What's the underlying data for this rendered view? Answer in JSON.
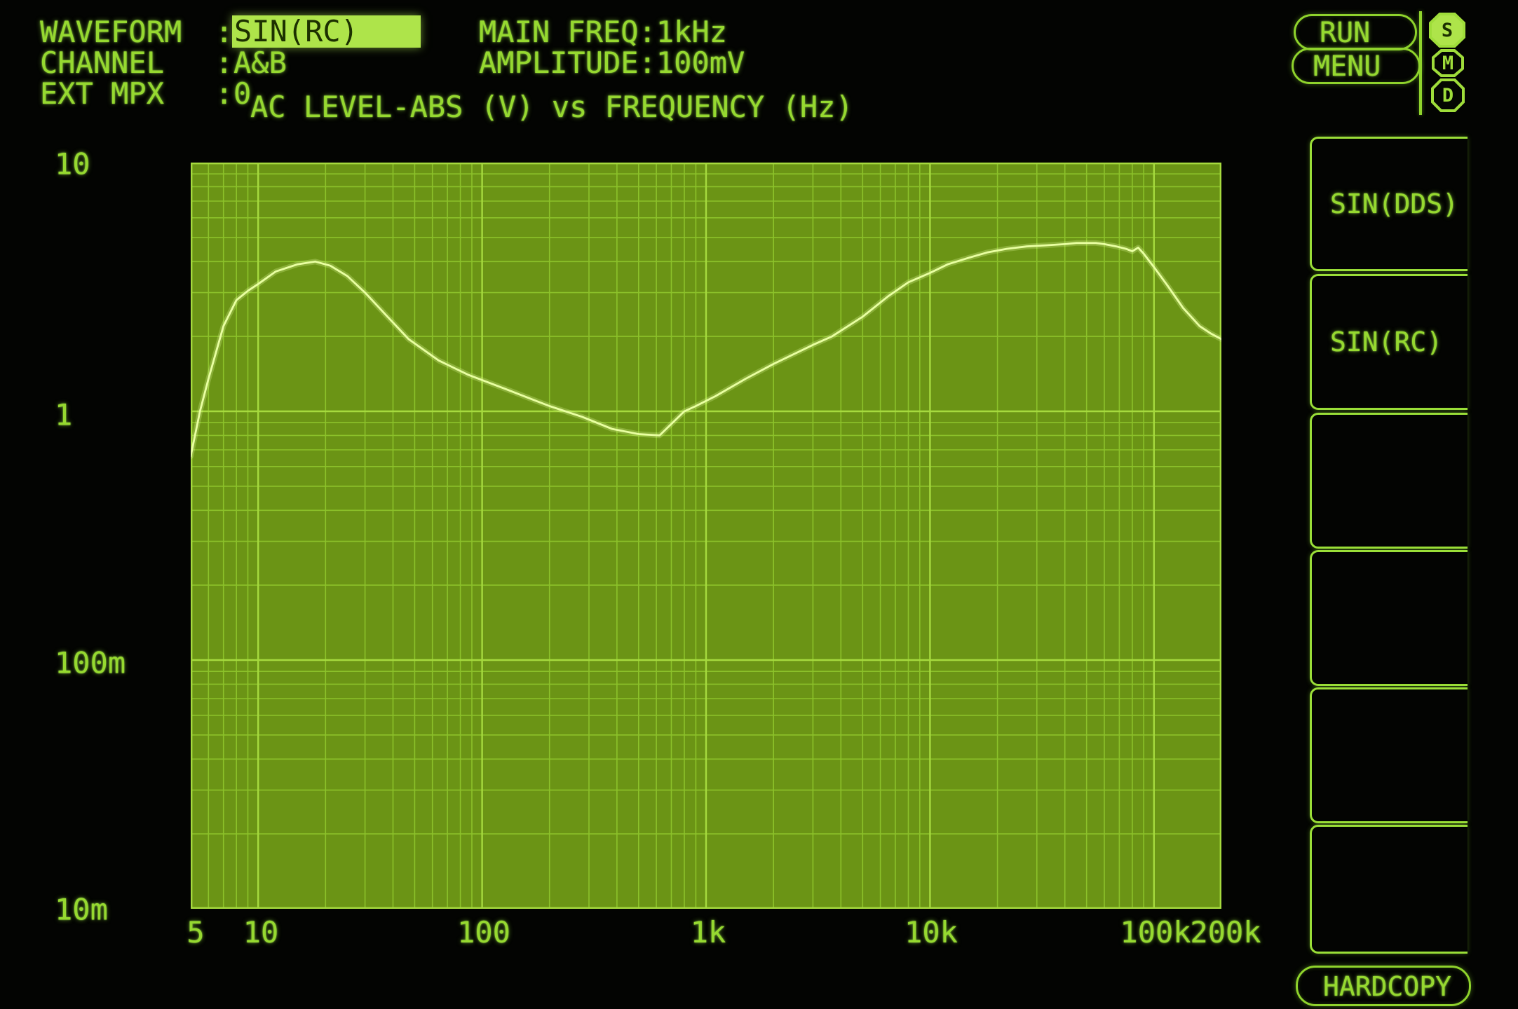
{
  "header": {
    "colon": ":",
    "rows": [
      {
        "label": "WAVEFORM",
        "value": "SIN(RC)",
        "highlighted": true
      },
      {
        "label": "CHANNEL",
        "value": "A&B",
        "highlighted": false
      },
      {
        "label": "EXT MPX",
        "value": "0",
        "highlighted": false
      }
    ],
    "main_freq_label": "MAIN FREQ",
    "main_freq_value": "1kHz",
    "amplitude_label": "AMPLITUDE",
    "amplitude_value": "100mV"
  },
  "chart_data": {
    "type": "line",
    "title": "AC LEVEL-ABS (V) vs FREQUENCY (Hz)",
    "xlabel": "FREQUENCY (Hz)",
    "ylabel": "AC LEVEL-ABS (V)",
    "x_scale": "log",
    "y_scale": "log",
    "x_range_hz": [
      5,
      200000
    ],
    "y_range_v": [
      0.01,
      10
    ],
    "x_tick_labels": [
      "5",
      "10",
      "100",
      "1k",
      "10k",
      "100k",
      "200k"
    ],
    "x_tick_values": [
      5,
      10,
      100,
      1000,
      10000,
      100000,
      200000
    ],
    "y_tick_labels": [
      "10",
      "1",
      "100m",
      "10m"
    ],
    "y_tick_values": [
      10,
      1,
      0.1,
      0.01
    ],
    "grid": "log decades with minor lines, filled phosphor panel",
    "legend": "none",
    "series": [
      {
        "name": "AC LEVEL-ABS (V)",
        "points": [
          [
            5,
            0.66
          ],
          [
            5.5,
            1.0
          ],
          [
            6,
            1.35
          ],
          [
            7,
            2.2
          ],
          [
            8,
            2.8
          ],
          [
            9,
            3.05
          ],
          [
            10,
            3.25
          ],
          [
            12,
            3.65
          ],
          [
            15,
            3.9
          ],
          [
            18,
            4.0
          ],
          [
            21,
            3.85
          ],
          [
            25,
            3.5
          ],
          [
            30,
            3.0
          ],
          [
            37,
            2.45
          ],
          [
            47,
            1.95
          ],
          [
            64,
            1.6
          ],
          [
            87,
            1.4
          ],
          [
            130,
            1.22
          ],
          [
            200,
            1.05
          ],
          [
            280,
            0.95
          ],
          [
            380,
            0.85
          ],
          [
            500,
            0.81
          ],
          [
            620,
            0.8
          ],
          [
            800,
            1.0
          ],
          [
            900,
            1.05
          ],
          [
            1100,
            1.15
          ],
          [
            1500,
            1.35
          ],
          [
            2000,
            1.55
          ],
          [
            3000,
            1.85
          ],
          [
            3650,
            2.0
          ],
          [
            5000,
            2.4
          ],
          [
            6500,
            2.9
          ],
          [
            8000,
            3.3
          ],
          [
            10000,
            3.6
          ],
          [
            12000,
            3.9
          ],
          [
            15000,
            4.15
          ],
          [
            18000,
            4.35
          ],
          [
            22000,
            4.5
          ],
          [
            27000,
            4.6
          ],
          [
            33000,
            4.65
          ],
          [
            40000,
            4.7
          ],
          [
            45000,
            4.75
          ],
          [
            55000,
            4.75
          ],
          [
            60000,
            4.7
          ],
          [
            68000,
            4.6
          ],
          [
            75000,
            4.5
          ],
          [
            80000,
            4.4
          ],
          [
            85000,
            4.55
          ],
          [
            90000,
            4.3
          ],
          [
            100000,
            3.8
          ],
          [
            115000,
            3.2
          ],
          [
            135000,
            2.6
          ],
          [
            160000,
            2.2
          ],
          [
            180000,
            2.05
          ],
          [
            200000,
            1.95
          ]
        ]
      }
    ]
  },
  "softkeys": {
    "items": [
      {
        "label": "SIN(DDS)"
      },
      {
        "label": "SIN(RC)"
      },
      {
        "label": ""
      },
      {
        "label": ""
      },
      {
        "label": ""
      },
      {
        "label": ""
      }
    ]
  },
  "buttons": {
    "run": "RUN",
    "menu": "MENU",
    "hardcopy": "HARDCOPY"
  },
  "indicators": {
    "items": [
      {
        "label": "S",
        "active": true
      },
      {
        "label": "M",
        "active": false
      },
      {
        "label": "D",
        "active": false
      }
    ]
  },
  "colors": {
    "background": "#030402",
    "phosphor": "#96d930",
    "phosphor_bright": "#b4ee52",
    "grid_fill": "#6b9415",
    "grid_minor": "#8cc22a",
    "grid_major": "#a6da3e",
    "curve": "#e9ffa2",
    "highlight_bg": "#aee44a",
    "highlight_text": "#1c3000"
  }
}
